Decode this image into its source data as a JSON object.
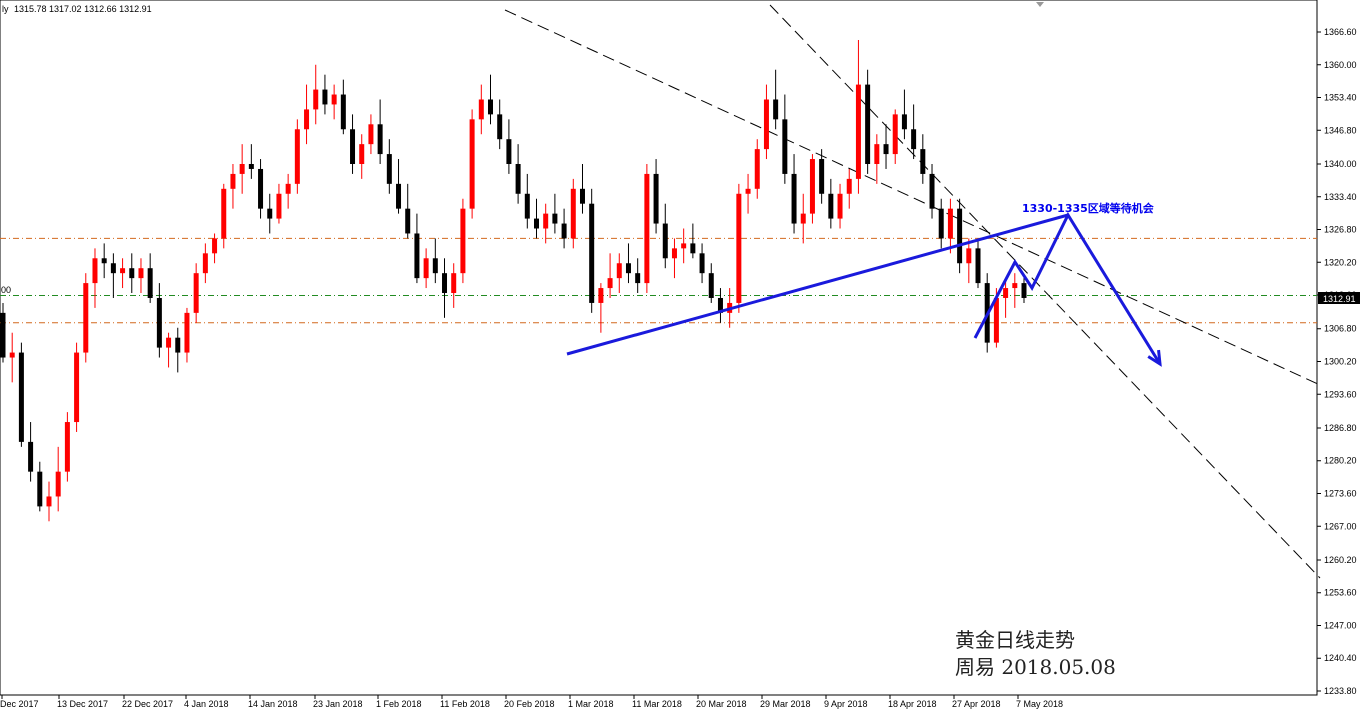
{
  "header": {
    "symbol_fragment": "ly",
    "ohlc": "1315.78 1317.02 1312.66 1312.91"
  },
  "left_edge_label": "00",
  "current_price_label": "1312.91",
  "annotation": "1330-1335区域等待机会",
  "watermark": {
    "line1": "黄金日线走势",
    "line2": "周易 2018.05.08"
  },
  "colors": {
    "bull": "#ff0000",
    "bear": "#000000",
    "trend_line": "#1a1adc",
    "channel": "#000000",
    "hline_orange": "#d2691e",
    "hline_green": "#228b22",
    "price_tag_bg": "#000000"
  },
  "chart_data": {
    "type": "candlestick",
    "timeframe": "daily",
    "instrument": "XAUUSD",
    "y_ticks": [
      "1366.60",
      "1360.00",
      "1353.40",
      "1346.80",
      "1340.00",
      "1333.40",
      "1326.80",
      "1320.20",
      "1313.60",
      "1306.80",
      "1300.20",
      "1293.60",
      "1286.80",
      "1280.20",
      "1273.60",
      "1267.00",
      "1260.20",
      "1253.60",
      "1247.00",
      "1240.40",
      "1233.80"
    ],
    "x_labels": [
      "Dec 2017",
      "13 Dec 2017",
      "22 Dec 2017",
      "4 Jan 2018",
      "14 Jan 2018",
      "23 Jan 2018",
      "1 Feb 2018",
      "11 Feb 2018",
      "20 Feb 2018",
      "1 Mar 2018",
      "11 Mar 2018",
      "20 Mar 2018",
      "29 Mar 2018",
      "9 Apr 2018",
      "18 Apr 2018",
      "27 Apr 2018",
      "7 May 2018"
    ],
    "ylim": [
      1233.8,
      1366.6
    ],
    "horizontal_levels": [
      {
        "price": 1325.0,
        "style": "orange-dashdot"
      },
      {
        "price": 1313.5,
        "style": "green-dashdot"
      },
      {
        "price": 1308.0,
        "style": "orange-dashdot"
      }
    ],
    "candles": [
      [
        1310,
        1312,
        1300,
        1301
      ],
      [
        1301,
        1306,
        1296,
        1302
      ],
      [
        1302,
        1304,
        1283,
        1284
      ],
      [
        1284,
        1288,
        1276,
        1278
      ],
      [
        1278,
        1280,
        1270,
        1271
      ],
      [
        1271,
        1276,
        1268,
        1273
      ],
      [
        1273,
        1283,
        1270,
        1278
      ],
      [
        1278,
        1290,
        1276,
        1288
      ],
      [
        1288,
        1304,
        1286,
        1302
      ],
      [
        1302,
        1318,
        1300,
        1316
      ],
      [
        1316,
        1323,
        1311,
        1321
      ],
      [
        1321,
        1324,
        1317,
        1320
      ],
      [
        1320,
        1322,
        1313,
        1318
      ],
      [
        1318,
        1321,
        1315,
        1319
      ],
      [
        1319,
        1322,
        1314,
        1317
      ],
      [
        1317,
        1321,
        1314,
        1319
      ],
      [
        1319,
        1322,
        1312,
        1313
      ],
      [
        1313,
        1316,
        1301,
        1303
      ],
      [
        1303,
        1306,
        1299,
        1305
      ],
      [
        1305,
        1307,
        1298,
        1302
      ],
      [
        1302,
        1311,
        1300,
        1310
      ],
      [
        1310,
        1320,
        1308,
        1318
      ],
      [
        1318,
        1324,
        1316,
        1322
      ],
      [
        1322,
        1326,
        1320,
        1325
      ],
      [
        1325,
        1336,
        1323,
        1335
      ],
      [
        1335,
        1340,
        1331,
        1338
      ],
      [
        1338,
        1344,
        1334,
        1340
      ],
      [
        1340,
        1344,
        1337,
        1339
      ],
      [
        1339,
        1341,
        1329,
        1331
      ],
      [
        1331,
        1334,
        1326,
        1329
      ],
      [
        1329,
        1336,
        1328,
        1334
      ],
      [
        1334,
        1338,
        1331,
        1336
      ],
      [
        1336,
        1349,
        1334,
        1347
      ],
      [
        1347,
        1356,
        1344,
        1351
      ],
      [
        1351,
        1360,
        1348,
        1355
      ],
      [
        1355,
        1358,
        1350,
        1352
      ],
      [
        1352,
        1356,
        1349,
        1354
      ],
      [
        1354,
        1357,
        1346,
        1347
      ],
      [
        1347,
        1350,
        1338,
        1340
      ],
      [
        1340,
        1346,
        1337,
        1344
      ],
      [
        1344,
        1350,
        1342,
        1348
      ],
      [
        1348,
        1353,
        1340,
        1342
      ],
      [
        1342,
        1345,
        1334,
        1336
      ],
      [
        1336,
        1341,
        1330,
        1331
      ],
      [
        1331,
        1336,
        1325,
        1326
      ],
      [
        1326,
        1330,
        1316,
        1317
      ],
      [
        1317,
        1323,
        1315,
        1321
      ],
      [
        1321,
        1325,
        1316,
        1318
      ],
      [
        1318,
        1321,
        1309,
        1314
      ],
      [
        1314,
        1320,
        1311,
        1318
      ],
      [
        1318,
        1333,
        1316,
        1331
      ],
      [
        1331,
        1351,
        1329,
        1349
      ],
      [
        1349,
        1356,
        1346,
        1353
      ],
      [
        1353,
        1358,
        1348,
        1350
      ],
      [
        1350,
        1353,
        1343,
        1345
      ],
      [
        1345,
        1349,
        1338,
        1340
      ],
      [
        1340,
        1344,
        1332,
        1334
      ],
      [
        1334,
        1338,
        1327,
        1329
      ],
      [
        1329,
        1333,
        1325,
        1327
      ],
      [
        1327,
        1332,
        1324,
        1330
      ],
      [
        1330,
        1334,
        1326,
        1328
      ],
      [
        1328,
        1331,
        1323,
        1325
      ],
      [
        1325,
        1337,
        1323,
        1335
      ],
      [
        1335,
        1340,
        1330,
        1332
      ],
      [
        1332,
        1335,
        1310,
        1312
      ],
      [
        1312,
        1316,
        1306,
        1315
      ],
      [
        1315,
        1322,
        1313,
        1317
      ],
      [
        1317,
        1322,
        1314,
        1320
      ],
      [
        1320,
        1324,
        1316,
        1318
      ],
      [
        1318,
        1321,
        1314,
        1316
      ],
      [
        1316,
        1340,
        1314,
        1338
      ],
      [
        1338,
        1341,
        1326,
        1328
      ],
      [
        1328,
        1332,
        1319,
        1321
      ],
      [
        1321,
        1325,
        1317,
        1323
      ],
      [
        1323,
        1327,
        1320,
        1324
      ],
      [
        1324,
        1328,
        1321,
        1322
      ],
      [
        1322,
        1324,
        1316,
        1318
      ],
      [
        1318,
        1320,
        1312,
        1313
      ],
      [
        1313,
        1315,
        1308,
        1310
      ],
      [
        1310,
        1315,
        1307,
        1312
      ],
      [
        1312,
        1336,
        1310,
        1334
      ],
      [
        1334,
        1338,
        1330,
        1335
      ],
      [
        1335,
        1345,
        1333,
        1343
      ],
      [
        1343,
        1356,
        1341,
        1353
      ],
      [
        1353,
        1359,
        1347,
        1349
      ],
      [
        1349,
        1354,
        1336,
        1338
      ],
      [
        1338,
        1342,
        1326,
        1328
      ],
      [
        1328,
        1334,
        1324,
        1330
      ],
      [
        1330,
        1342,
        1328,
        1341
      ],
      [
        1341,
        1343,
        1332,
        1334
      ],
      [
        1334,
        1337,
        1327,
        1329
      ],
      [
        1329,
        1336,
        1327,
        1334
      ],
      [
        1334,
        1339,
        1331,
        1337
      ],
      [
        1337,
        1365,
        1334,
        1356
      ],
      [
        1356,
        1359,
        1338,
        1340
      ],
      [
        1340,
        1346,
        1336,
        1344
      ],
      [
        1344,
        1348,
        1339,
        1342
      ],
      [
        1342,
        1351,
        1340,
        1350
      ],
      [
        1350,
        1355,
        1345,
        1347
      ],
      [
        1347,
        1352,
        1341,
        1343
      ],
      [
        1343,
        1346,
        1336,
        1338
      ],
      [
        1338,
        1340,
        1329,
        1331
      ],
      [
        1331,
        1333,
        1323,
        1325
      ],
      [
        1325,
        1333,
        1322,
        1331
      ],
      [
        1331,
        1333,
        1318,
        1320
      ],
      [
        1320,
        1325,
        1316,
        1323
      ],
      [
        1323,
        1325,
        1315,
        1316
      ],
      [
        1316,
        1318,
        1302,
        1304
      ],
      [
        1304,
        1315,
        1303,
        1313
      ],
      [
        1313,
        1317,
        1309,
        1315
      ],
      [
        1315,
        1318,
        1311,
        1316
      ],
      [
        1316,
        1317,
        1312,
        1313
      ]
    ],
    "trend_line": [
      [
        567,
        354
      ],
      [
        1068,
        215
      ]
    ],
    "channel_upper": [
      [
        505,
        10
      ],
      [
        1320,
        385
      ]
    ],
    "channel_lower": [
      [
        770,
        5
      ],
      [
        1320,
        578
      ]
    ],
    "forecast_path": [
      [
        975,
        338
      ],
      [
        1015,
        262
      ],
      [
        1032,
        288
      ],
      [
        1068,
        215
      ],
      [
        1160,
        364
      ]
    ]
  }
}
